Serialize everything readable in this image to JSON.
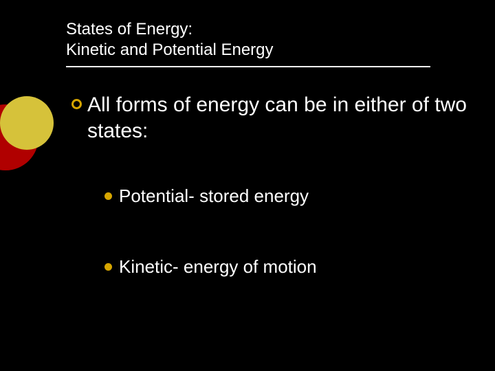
{
  "colors": {
    "background": "#000000",
    "text": "#ffffff",
    "accent": "#d6a500",
    "decor_red": "#b00000",
    "decor_yellow": "#d6c23a",
    "rule": "#ffffff"
  },
  "typography": {
    "title_fontsize": 24,
    "main_fontsize": 30,
    "sub_fontsize": 26,
    "title_family": "Arial",
    "body_family": "Verdana"
  },
  "title": {
    "line1": "States of Energy:",
    "line2": "Kinetic and Potential Energy"
  },
  "main_bullet": "All forms of energy can be in either of two states:",
  "sub_bullets": [
    "Potential- stored energy",
    "Kinetic- energy of motion"
  ]
}
